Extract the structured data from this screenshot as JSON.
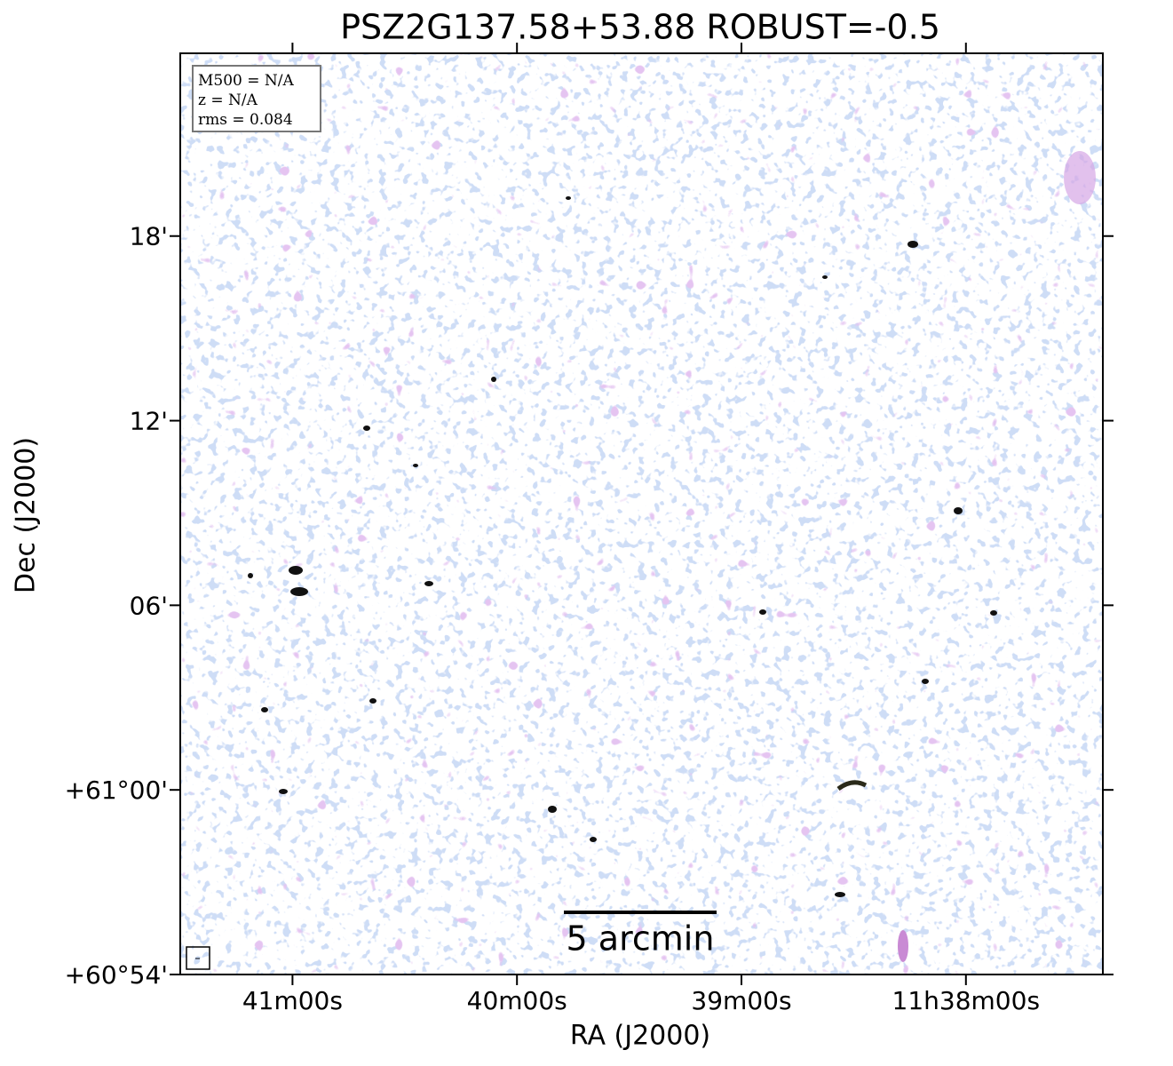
{
  "chart_data": {
    "type": "image",
    "title": "PSZ2G137.58+53.88 ROBUST=-0.5",
    "x_label": "RA (J2000)",
    "y_label": "Dec (J2000)",
    "xlim": [
      701.5,
      697.39
    ],
    "xticks": [
      {
        "value": 701,
        "label": "41m00s"
      },
      {
        "value": 700,
        "label": "40m00s"
      },
      {
        "value": 699,
        "label": "39m00s"
      },
      {
        "value": 698,
        "label": "11h38m00s"
      }
    ],
    "ylim": [
      60.9,
      61.399
    ],
    "yticks": [
      {
        "value": 60.9,
        "label": "+60°54'"
      },
      {
        "value": 61.0,
        "label": "+61°00'"
      },
      {
        "value": 61.1,
        "label": "06'"
      },
      {
        "value": 61.2,
        "label": "12'"
      },
      {
        "value": 61.3,
        "label": "18'"
      }
    ],
    "annotations": [
      "M500 = N/A",
      "z = N/A",
      "rms = 0.084"
    ],
    "scale_bar_label": "5 arcmin"
  }
}
